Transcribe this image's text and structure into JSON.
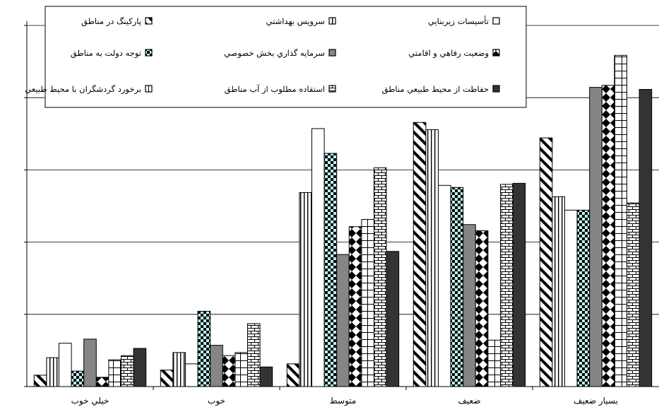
{
  "chart_data": {
    "type": "bar",
    "categories": [
      "خيلي خوب",
      "خوب",
      "متوسط",
      "ضعيف",
      "بسيار ضعيف"
    ],
    "ylim": [
      0,
      35
    ],
    "y_ticks": [
      0,
      7,
      14,
      21,
      28,
      35
    ],
    "y_tick_labels": [
      "",
      "",
      "",
      "",
      "",
      ""
    ],
    "grid": true,
    "legend_position": "top",
    "series": [
      {
        "name": "پارکينگ در مناطق",
        "pattern": "diag-back",
        "values": [
          1.1,
          1.6,
          2.2,
          25.6,
          24.1
        ]
      },
      {
        "name": "سرويس بهداشتي",
        "pattern": "vlines",
        "values": [
          2.8,
          3.3,
          18.8,
          24.9,
          18.4
        ]
      },
      {
        "name": "تأسيسات زيربنايي",
        "pattern": "white",
        "values": [
          4.2,
          2.2,
          25.0,
          19.5,
          17.1
        ]
      },
      {
        "name": "توجه دولت به مناطق",
        "pattern": "checker-cyan",
        "values": [
          1.5,
          7.3,
          22.6,
          19.3,
          17.1
        ]
      },
      {
        "name": "سرمايه گذاري بخش خصوصي",
        "pattern": "gray",
        "values": [
          4.6,
          4.0,
          12.8,
          15.7,
          29.0
        ]
      },
      {
        "name": "وضعيت رفاهي و اقامتي",
        "pattern": "diamond",
        "values": [
          0.9,
          3.0,
          15.5,
          15.1,
          29.2
        ]
      },
      {
        "name": "برخورد گردشگران با محيط طبيعي",
        "pattern": "brick-large",
        "values": [
          2.6,
          3.3,
          16.2,
          4.5,
          32.1
        ]
      },
      {
        "name": "استفاده مطلوب از آب مناطق",
        "pattern": "brick-small",
        "values": [
          3.0,
          6.1,
          21.2,
          19.6,
          17.8
        ]
      },
      {
        "name": "حفاظت از محيط طبيعي مناطق",
        "pattern": "dark",
        "values": [
          3.7,
          1.9,
          13.1,
          19.7,
          28.8
        ]
      }
    ]
  }
}
